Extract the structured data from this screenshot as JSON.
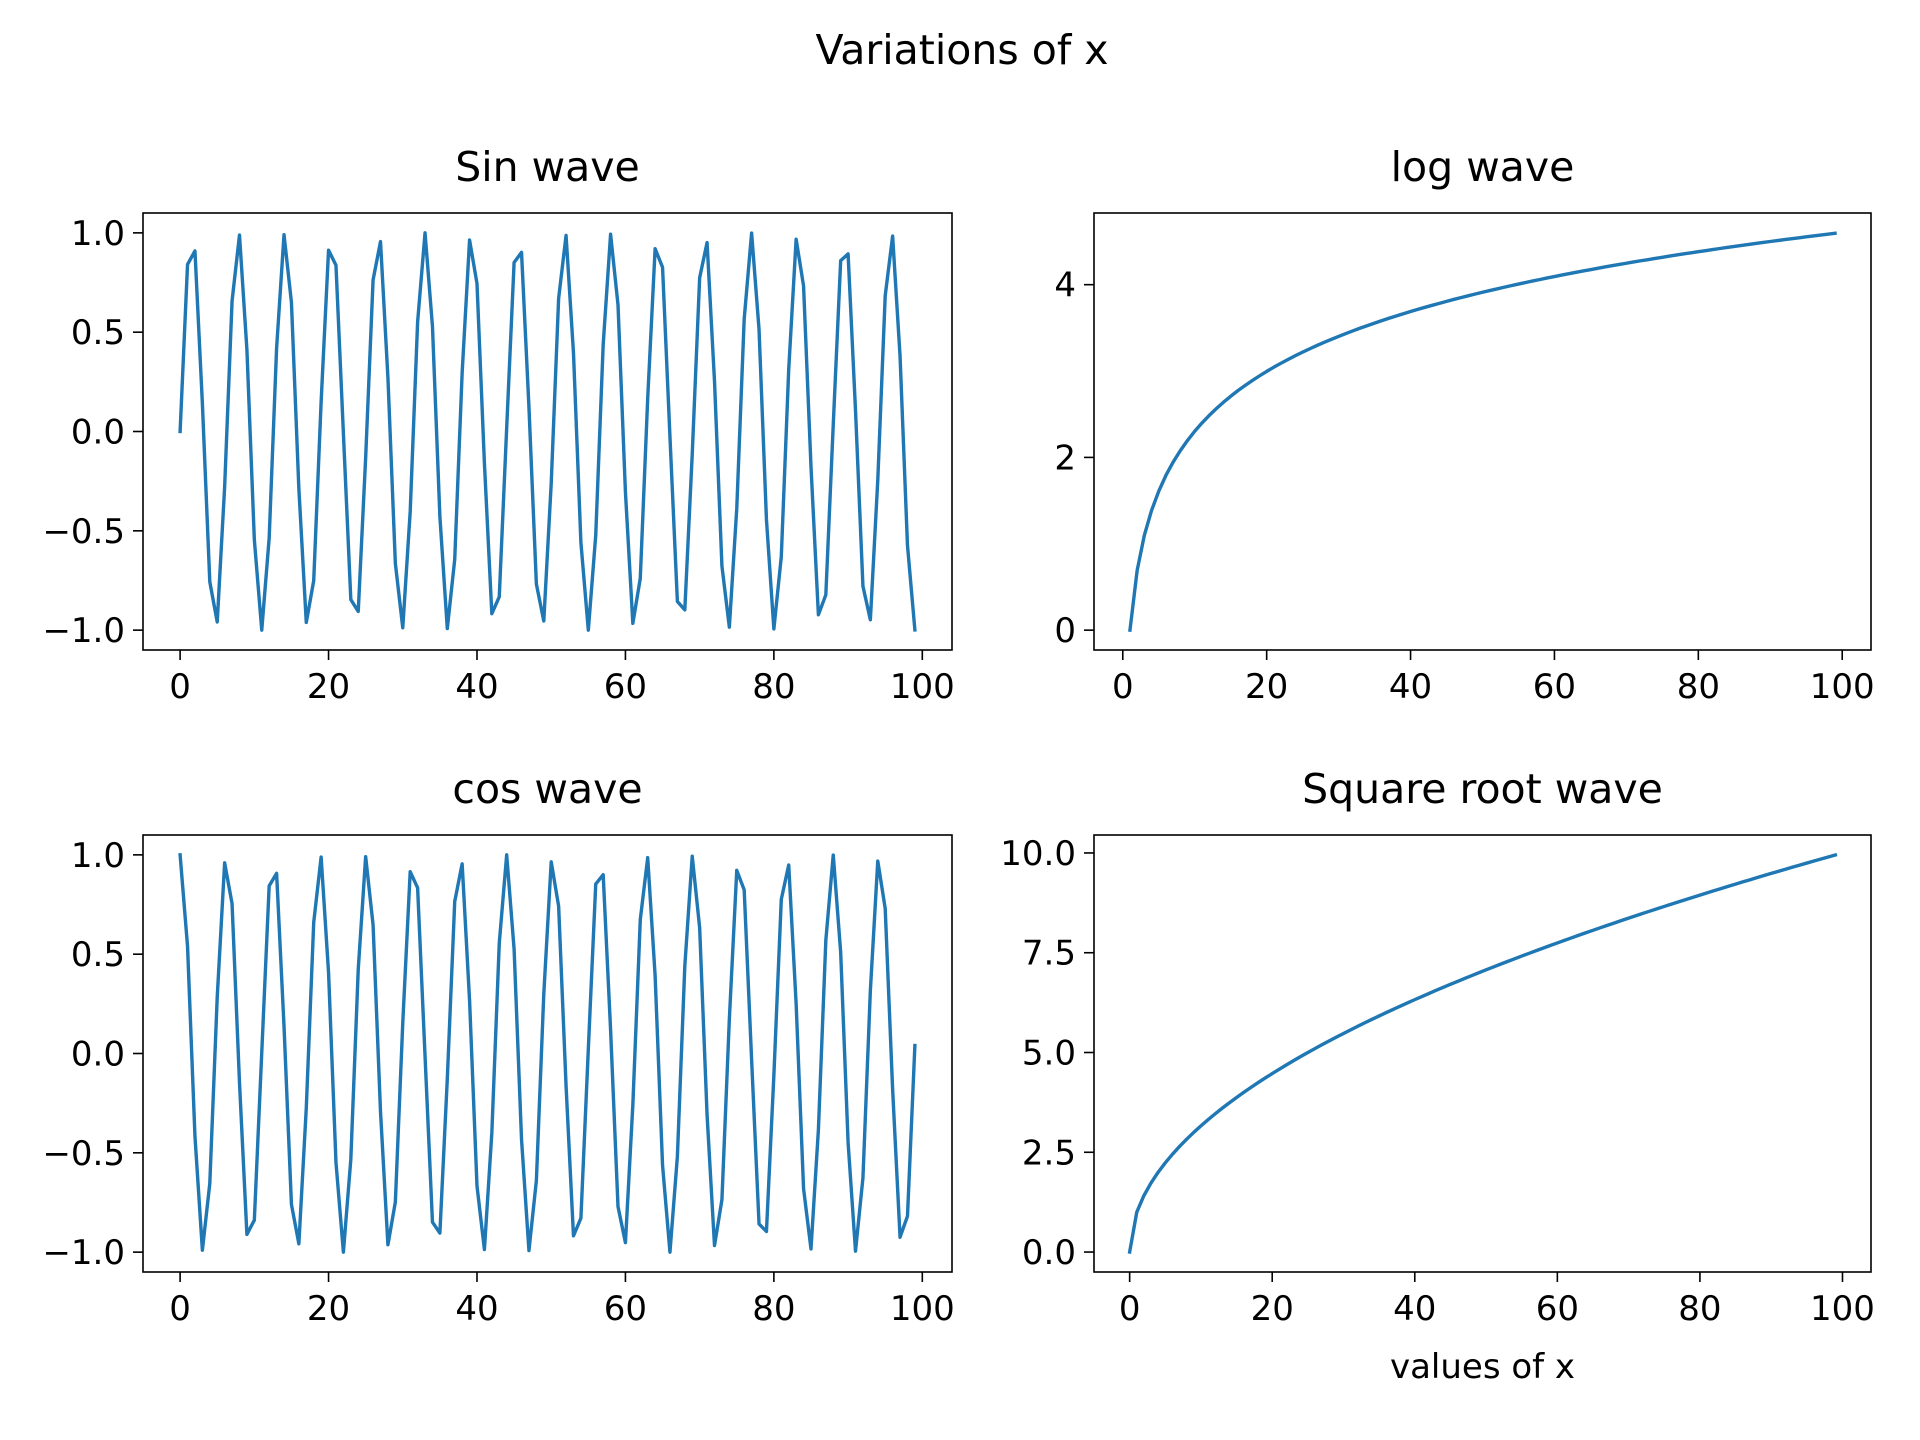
{
  "figure": {
    "suptitle": "Variations of x",
    "line_color": "#1f77b4"
  },
  "chart_data": [
    {
      "type": "line",
      "id": "sin",
      "title": "Sin wave",
      "xlabel": "",
      "ylabel": "",
      "xlim": [
        -5,
        104
      ],
      "ylim": [
        -1.1,
        1.1
      ],
      "xticks": [
        0,
        20,
        40,
        60,
        80,
        100
      ],
      "yticks": [
        -1.0,
        -0.5,
        0.0,
        0.5,
        1.0
      ],
      "xtick_labels": [
        "0",
        "20",
        "40",
        "60",
        "80",
        "100"
      ],
      "ytick_labels": [
        "−1.0",
        "−0.5",
        "0.0",
        "0.5",
        "1.0"
      ],
      "grid": false,
      "series": [
        {
          "function": "sin(x)",
          "x": [
            0,
            1,
            2,
            3,
            4,
            5,
            6,
            7,
            8,
            9,
            10,
            11,
            12,
            13,
            14,
            15,
            16,
            17,
            18,
            19,
            20,
            21,
            22,
            23,
            24,
            25,
            26,
            27,
            28,
            29,
            30,
            31,
            32,
            33,
            34,
            35,
            36,
            37,
            38,
            39,
            40,
            41,
            42,
            43,
            44,
            45,
            46,
            47,
            48,
            49,
            50,
            51,
            52,
            53,
            54,
            55,
            56,
            57,
            58,
            59,
            60,
            61,
            62,
            63,
            64,
            65,
            66,
            67,
            68,
            69,
            70,
            71,
            72,
            73,
            74,
            75,
            76,
            77,
            78,
            79,
            80,
            81,
            82,
            83,
            84,
            85,
            86,
            87,
            88,
            89,
            90,
            91,
            92,
            93,
            94,
            95,
            96,
            97,
            98,
            99
          ],
          "y": [
            0.0,
            0.841,
            0.909,
            0.141,
            -0.757,
            -0.959,
            -0.279,
            0.657,
            0.989,
            0.412,
            -0.544,
            -1.0,
            -0.537,
            0.42,
            0.991,
            0.65,
            -0.288,
            -0.961,
            -0.751,
            0.15,
            0.913,
            0.837,
            -0.009,
            -0.846,
            -0.906,
            -0.132,
            0.763,
            0.956,
            0.271,
            -0.664,
            -0.988,
            -0.404,
            0.551,
            1.0,
            0.529,
            -0.428,
            -0.992,
            -0.644,
            0.296,
            0.964,
            0.745,
            -0.159,
            -0.917,
            -0.832,
            0.018,
            0.851,
            0.902,
            0.124,
            -0.768,
            -0.954,
            -0.262,
            0.67,
            0.987,
            0.396,
            -0.559,
            -1.0,
            -0.522,
            0.436,
            0.993,
            0.637,
            -0.305,
            -0.966,
            -0.739,
            0.167,
            0.92,
            0.827,
            -0.027,
            -0.856,
            -0.898,
            -0.115,
            0.774,
            0.951,
            0.254,
            -0.677,
            -0.985,
            -0.388,
            0.566,
            0.999,
            0.514,
            -0.444,
            -0.994,
            -0.63,
            0.313,
            0.968,
            0.733,
            -0.176,
            -0.923,
            -0.822,
            0.035,
            0.86,
            0.894,
            0.106,
            -0.779,
            -0.948,
            -0.245,
            0.683,
            0.984,
            0.38,
            -0.573,
            -0.999
          ]
        }
      ]
    },
    {
      "type": "line",
      "id": "log",
      "title": "log wave",
      "xlabel": "",
      "ylabel": "",
      "xlim": [
        -4,
        104
      ],
      "ylim": [
        -0.23,
        4.83
      ],
      "xticks": [
        0,
        20,
        40,
        60,
        80,
        100
      ],
      "yticks": [
        0,
        2,
        4
      ],
      "xtick_labels": [
        "0",
        "20",
        "40",
        "60",
        "80",
        "100"
      ],
      "ytick_labels": [
        "0",
        "2",
        "4"
      ],
      "grid": false,
      "series": [
        {
          "function": "log(x)",
          "x": [
            1,
            2,
            3,
            4,
            5,
            6,
            7,
            8,
            9,
            10,
            11,
            12,
            13,
            14,
            15,
            16,
            17,
            18,
            19,
            20,
            21,
            22,
            23,
            24,
            25,
            26,
            27,
            28,
            29,
            30,
            31,
            32,
            33,
            34,
            35,
            36,
            37,
            38,
            39,
            40,
            41,
            42,
            43,
            44,
            45,
            46,
            47,
            48,
            49,
            50,
            51,
            52,
            53,
            54,
            55,
            56,
            57,
            58,
            59,
            60,
            61,
            62,
            63,
            64,
            65,
            66,
            67,
            68,
            69,
            70,
            71,
            72,
            73,
            74,
            75,
            76,
            77,
            78,
            79,
            80,
            81,
            82,
            83,
            84,
            85,
            86,
            87,
            88,
            89,
            90,
            91,
            92,
            93,
            94,
            95,
            96,
            97,
            98,
            99
          ],
          "y": [
            0.0,
            0.693,
            1.099,
            1.386,
            1.609,
            1.792,
            1.946,
            2.079,
            2.197,
            2.303,
            2.398,
            2.485,
            2.565,
            2.639,
            2.708,
            2.773,
            2.833,
            2.89,
            2.944,
            2.996,
            3.045,
            3.091,
            3.135,
            3.178,
            3.219,
            3.258,
            3.296,
            3.332,
            3.367,
            3.401,
            3.434,
            3.466,
            3.497,
            3.526,
            3.555,
            3.584,
            3.611,
            3.638,
            3.664,
            3.689,
            3.714,
            3.738,
            3.761,
            3.784,
            3.807,
            3.829,
            3.85,
            3.871,
            3.892,
            3.912,
            3.932,
            3.951,
            3.97,
            3.989,
            4.007,
            4.025,
            4.043,
            4.06,
            4.078,
            4.094,
            4.111,
            4.127,
            4.143,
            4.159,
            4.174,
            4.19,
            4.205,
            4.22,
            4.234,
            4.248,
            4.263,
            4.277,
            4.29,
            4.304,
            4.317,
            4.331,
            4.344,
            4.357,
            4.369,
            4.382,
            4.394,
            4.407,
            4.419,
            4.431,
            4.443,
            4.454,
            4.466,
            4.477,
            4.489,
            4.5,
            4.511,
            4.522,
            4.533,
            4.543,
            4.554,
            4.564,
            4.575,
            4.585,
            4.595
          ]
        }
      ]
    },
    {
      "type": "line",
      "id": "cos",
      "title": "cos wave",
      "xlabel": "",
      "ylabel": "",
      "xlim": [
        -5,
        104
      ],
      "ylim": [
        -1.1,
        1.1
      ],
      "xticks": [
        0,
        20,
        40,
        60,
        80,
        100
      ],
      "yticks": [
        -1.0,
        -0.5,
        0.0,
        0.5,
        1.0
      ],
      "xtick_labels": [
        "0",
        "20",
        "40",
        "60",
        "80",
        "100"
      ],
      "ytick_labels": [
        "−1.0",
        "−0.5",
        "0.0",
        "0.5",
        "1.0"
      ],
      "grid": false,
      "series": [
        {
          "function": "cos(x)",
          "x": [
            0,
            1,
            2,
            3,
            4,
            5,
            6,
            7,
            8,
            9,
            10,
            11,
            12,
            13,
            14,
            15,
            16,
            17,
            18,
            19,
            20,
            21,
            22,
            23,
            24,
            25,
            26,
            27,
            28,
            29,
            30,
            31,
            32,
            33,
            34,
            35,
            36,
            37,
            38,
            39,
            40,
            41,
            42,
            43,
            44,
            45,
            46,
            47,
            48,
            49,
            50,
            51,
            52,
            53,
            54,
            55,
            56,
            57,
            58,
            59,
            60,
            61,
            62,
            63,
            64,
            65,
            66,
            67,
            68,
            69,
            70,
            71,
            72,
            73,
            74,
            75,
            76,
            77,
            78,
            79,
            80,
            81,
            82,
            83,
            84,
            85,
            86,
            87,
            88,
            89,
            90,
            91,
            92,
            93,
            94,
            95,
            96,
            97,
            98,
            99
          ],
          "y": [
            1.0,
            0.54,
            -0.416,
            -0.99,
            -0.654,
            0.284,
            0.96,
            0.754,
            -0.146,
            -0.911,
            -0.839,
            0.004,
            0.844,
            0.907,
            0.137,
            -0.76,
            -0.958,
            -0.275,
            0.66,
            0.989,
            0.408,
            -0.548,
            -1.0,
            -0.533,
            0.424,
            0.991,
            0.647,
            -0.292,
            -0.963,
            -0.748,
            0.154,
            0.915,
            0.834,
            -0.013,
            -0.849,
            -0.904,
            -0.128,
            0.765,
            0.955,
            0.267,
            -0.667,
            -0.987,
            -0.4,
            0.555,
            1.0,
            0.525,
            -0.432,
            -0.992,
            -0.64,
            0.3,
            0.965,
            0.742,
            -0.163,
            -0.918,
            -0.829,
            0.022,
            0.853,
            0.9,
            0.119,
            -0.771,
            -0.952,
            -0.258,
            0.674,
            0.986,
            0.392,
            -0.562,
            -1.0,
            -0.518,
            0.44,
            0.993,
            0.633,
            -0.309,
            -0.967,
            -0.736,
            0.172,
            0.922,
            0.824,
            -0.031,
            -0.858,
            -0.896,
            -0.11,
            0.776,
            0.949,
            0.25,
            -0.68,
            -0.984,
            -0.384,
            0.57,
            0.999,
            0.51,
            -0.448,
            -0.995,
            -0.626,
            0.317,
            0.969,
            0.73,
            -0.18,
            -0.925,
            -0.819,
            0.04
          ]
        }
      ]
    },
    {
      "type": "line",
      "id": "sqrt",
      "title": "Square root wave",
      "xlabel": "values of x",
      "ylabel": "",
      "xlim": [
        -5,
        104
      ],
      "ylim": [
        -0.5,
        10.45
      ],
      "xticks": [
        0,
        20,
        40,
        60,
        80,
        100
      ],
      "yticks": [
        0.0,
        2.5,
        5.0,
        7.5,
        10.0
      ],
      "xtick_labels": [
        "0",
        "20",
        "40",
        "60",
        "80",
        "100"
      ],
      "ytick_labels": [
        "0.0",
        "2.5",
        "5.0",
        "7.5",
        "10.0"
      ],
      "grid": false,
      "series": [
        {
          "function": "sqrt(x)",
          "x": [
            0,
            1,
            2,
            3,
            4,
            5,
            6,
            7,
            8,
            9,
            10,
            11,
            12,
            13,
            14,
            15,
            16,
            17,
            18,
            19,
            20,
            21,
            22,
            23,
            24,
            25,
            26,
            27,
            28,
            29,
            30,
            31,
            32,
            33,
            34,
            35,
            36,
            37,
            38,
            39,
            40,
            41,
            42,
            43,
            44,
            45,
            46,
            47,
            48,
            49,
            50,
            51,
            52,
            53,
            54,
            55,
            56,
            57,
            58,
            59,
            60,
            61,
            62,
            63,
            64,
            65,
            66,
            67,
            68,
            69,
            70,
            71,
            72,
            73,
            74,
            75,
            76,
            77,
            78,
            79,
            80,
            81,
            82,
            83,
            84,
            85,
            86,
            87,
            88,
            89,
            90,
            91,
            92,
            93,
            94,
            95,
            96,
            97,
            98,
            99
          ],
          "y": [
            0.0,
            1.0,
            1.414,
            1.732,
            2.0,
            2.236,
            2.449,
            2.646,
            2.828,
            3.0,
            3.162,
            3.317,
            3.464,
            3.606,
            3.742,
            3.873,
            4.0,
            4.123,
            4.243,
            4.359,
            4.472,
            4.583,
            4.69,
            4.796,
            4.899,
            5.0,
            5.099,
            5.196,
            5.292,
            5.385,
            5.477,
            5.568,
            5.657,
            5.745,
            5.831,
            5.916,
            6.0,
            6.083,
            6.164,
            6.245,
            6.325,
            6.403,
            6.481,
            6.557,
            6.633,
            6.708,
            6.782,
            6.856,
            6.928,
            7.0,
            7.071,
            7.141,
            7.211,
            7.28,
            7.348,
            7.416,
            7.483,
            7.55,
            7.616,
            7.681,
            7.746,
            7.81,
            7.874,
            7.937,
            8.0,
            8.062,
            8.124,
            8.185,
            8.246,
            8.307,
            8.367,
            8.426,
            8.485,
            8.544,
            8.602,
            8.66,
            8.718,
            8.775,
            8.832,
            8.888,
            8.944,
            9.0,
            9.055,
            9.11,
            9.165,
            9.22,
            9.274,
            9.327,
            9.381,
            9.434,
            9.487,
            9.539,
            9.592,
            9.644,
            9.695,
            9.747,
            9.798,
            9.849,
            9.899,
            9.95
          ]
        }
      ]
    }
  ]
}
